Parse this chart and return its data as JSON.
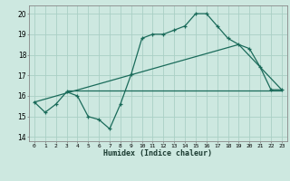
{
  "xlabel": "Humidex (Indice chaleur)",
  "bg_color": "#cde8e0",
  "grid_color": "#aacfc5",
  "line_color": "#1a6b5a",
  "xlim": [
    -0.5,
    23.5
  ],
  "ylim": [
    13.8,
    20.4
  ],
  "yticks": [
    14,
    15,
    16,
    17,
    18,
    19,
    20
  ],
  "xticks": [
    0,
    1,
    2,
    3,
    4,
    5,
    6,
    7,
    8,
    9,
    10,
    11,
    12,
    13,
    14,
    15,
    16,
    17,
    18,
    19,
    20,
    21,
    22,
    23
  ],
  "series1_x": [
    0,
    1,
    2,
    3,
    4,
    5,
    6,
    7,
    8,
    9,
    10,
    11,
    12,
    13,
    14,
    15,
    16,
    17,
    18,
    19,
    20,
    21,
    22,
    23
  ],
  "series1_y": [
    15.7,
    15.2,
    15.6,
    16.2,
    16.0,
    15.0,
    14.85,
    14.4,
    15.6,
    17.05,
    18.8,
    19.0,
    19.0,
    19.2,
    19.4,
    20.0,
    20.0,
    19.4,
    18.8,
    18.5,
    18.3,
    17.4,
    16.3,
    16.3
  ],
  "series2_x": [
    0,
    19,
    23
  ],
  "series2_y": [
    15.7,
    18.5,
    16.3
  ],
  "series3_x": [
    3,
    23
  ],
  "series3_y": [
    16.25,
    16.25
  ]
}
